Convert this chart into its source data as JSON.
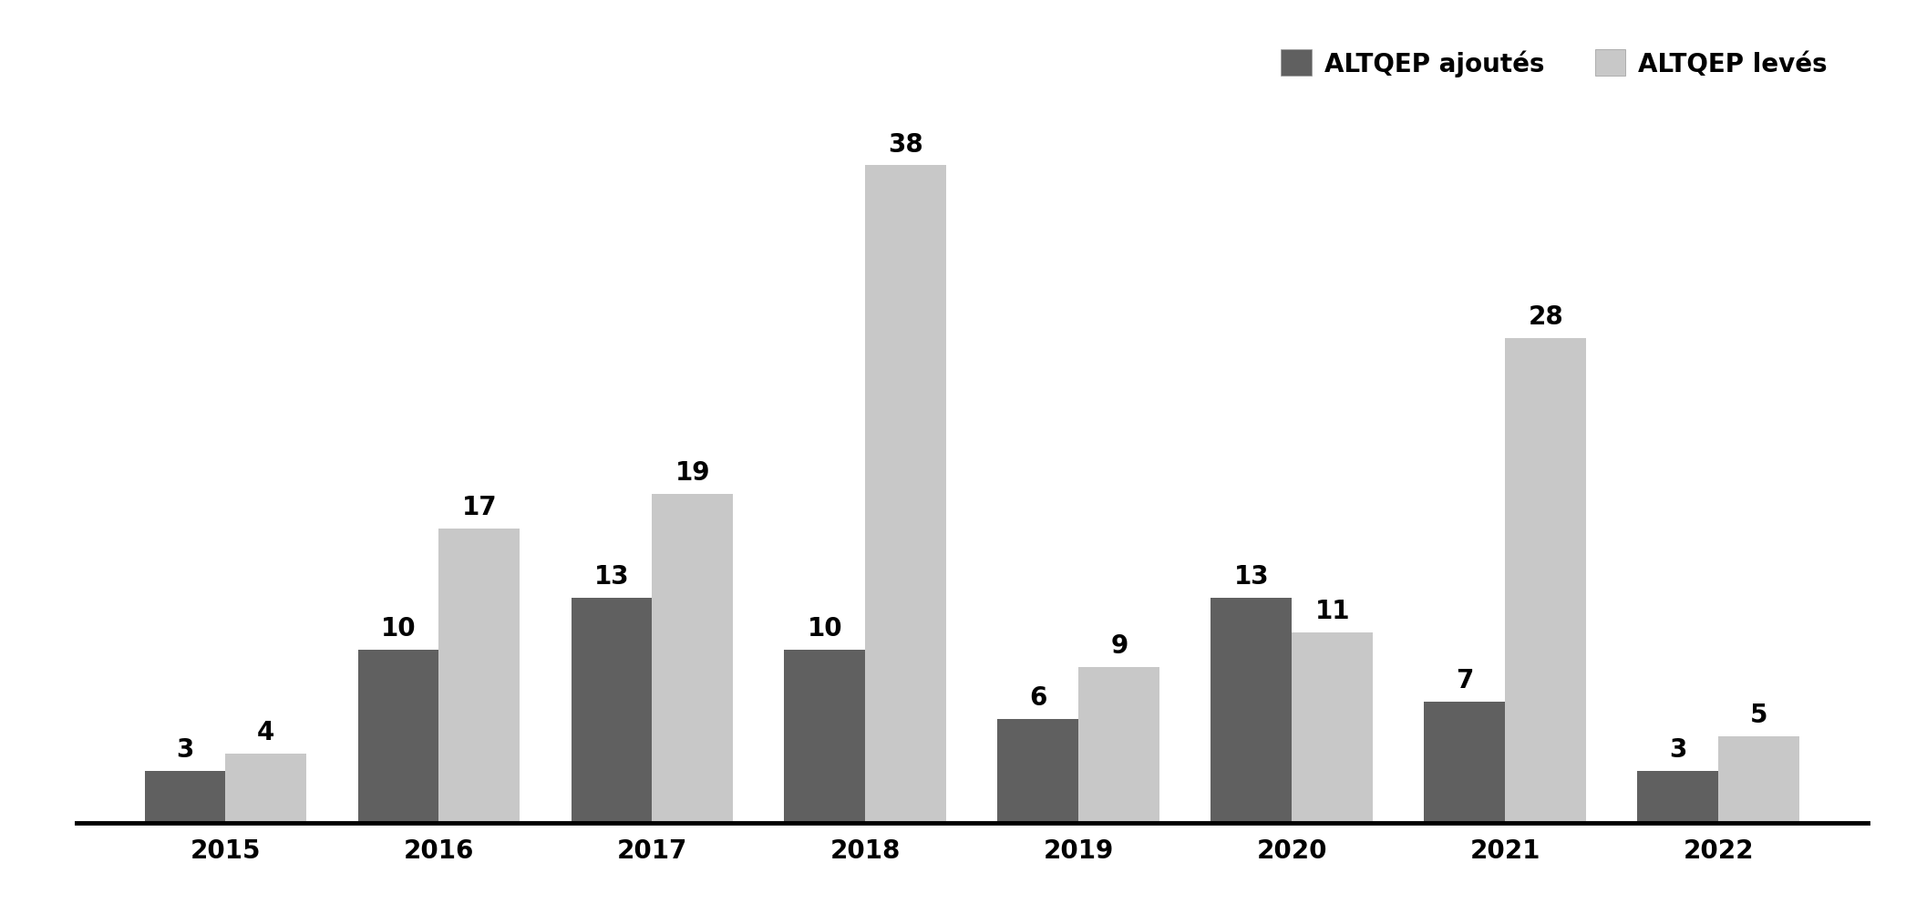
{
  "years": [
    "2015",
    "2016",
    "2017",
    "2018",
    "2019",
    "2020",
    "2021",
    "2022"
  ],
  "ajoutes": [
    3,
    10,
    13,
    10,
    6,
    13,
    7,
    3
  ],
  "leves": [
    4,
    17,
    19,
    38,
    9,
    11,
    28,
    5
  ],
  "color_ajoutes": "#606060",
  "color_leves": "#c8c8c8",
  "legend_labels": [
    "ALTQEP ajoutés",
    "ALTQEP levés"
  ],
  "bar_width": 0.38,
  "tick_fontsize": 20,
  "legend_fontsize": 20,
  "annotation_fontsize": 20,
  "background_color": "#ffffff",
  "ylim": [
    0,
    46
  ]
}
